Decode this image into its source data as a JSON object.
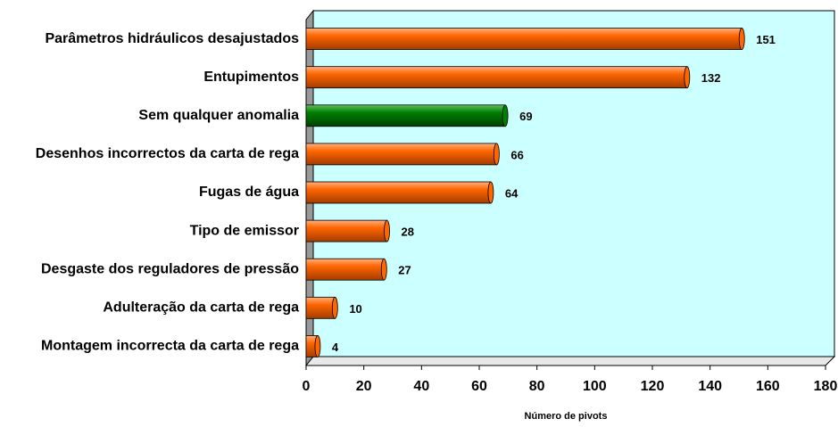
{
  "chart_data": {
    "type": "bar",
    "orientation": "horizontal",
    "categories": [
      "Parâmetros hidráulicos desajustados",
      "Entupimentos",
      "Sem qualquer anomalia",
      "Desenhos incorrectos da carta de rega",
      "Fugas de água",
      "Tipo de emissor",
      "Desgaste dos reguladores de pressão",
      "Adulteração da carta de rega",
      "Montagem incorrecta da carta de rega"
    ],
    "values": [
      151,
      132,
      69,
      66,
      64,
      28,
      27,
      10,
      4
    ],
    "colors": [
      "#ff6600",
      "#ff6600",
      "#008000",
      "#ff6600",
      "#ff6600",
      "#ff6600",
      "#ff6600",
      "#ff6600",
      "#ff6600"
    ],
    "x_label": "Número de pivots",
    "xlim": [
      0,
      180
    ],
    "xticks": [
      0,
      20,
      40,
      60,
      80,
      100,
      120,
      140,
      160,
      180
    ]
  }
}
